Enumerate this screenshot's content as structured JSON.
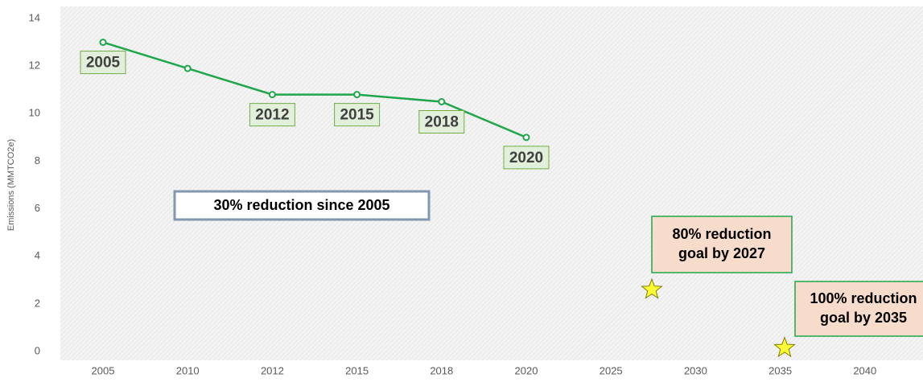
{
  "chart_data": {
    "type": "line",
    "y_label": "Emissions (MMTCO2e)",
    "categories": [
      "2005",
      "2010",
      "2012",
      "2015",
      "2018",
      "2020",
      "2025",
      "2030",
      "2035",
      "2040"
    ],
    "series": [
      {
        "name": "Emissions",
        "color": "#1fa64a",
        "values": [
          13,
          11.9,
          10.8,
          10.8,
          10.5,
          9,
          null,
          null,
          null,
          null
        ]
      }
    ],
    "point_labels": [
      "2005",
      null,
      "2012",
      "2015",
      "2018",
      "2020",
      null,
      null,
      null,
      null
    ],
    "ylim": [
      0,
      14
    ],
    "yticks": [
      0,
      2,
      4,
      6,
      8,
      10,
      12,
      14
    ],
    "note": "30% reduction since 2005",
    "goals": [
      {
        "lines": [
          "80% reduction",
          "goal by 2027"
        ],
        "value": 2.6,
        "color": "#ffff33"
      },
      {
        "lines": [
          "100% reduction",
          "goal by 2035"
        ],
        "value": 0.15,
        "color": "#ffff33"
      }
    ]
  }
}
